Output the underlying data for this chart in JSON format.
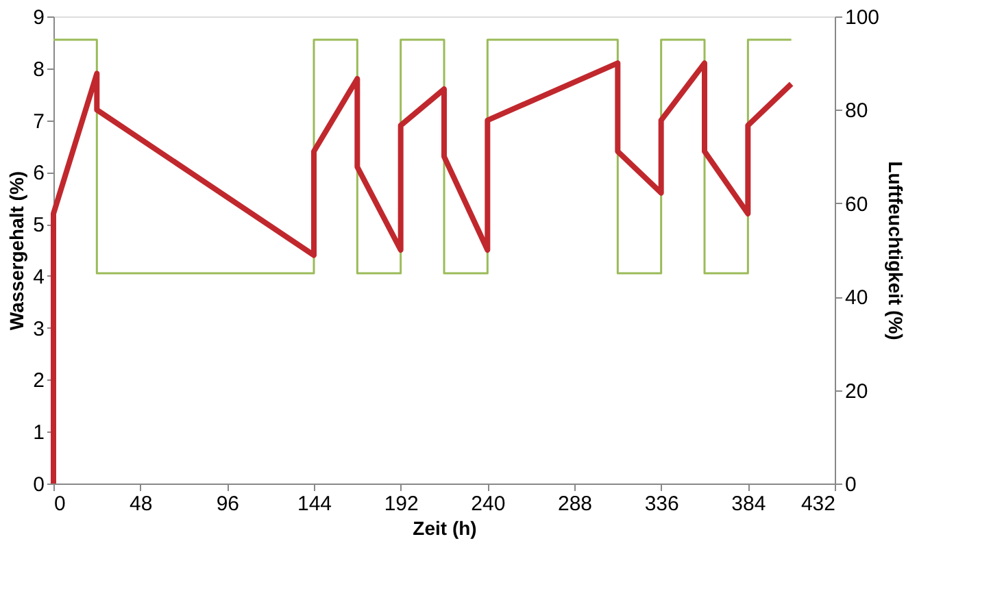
{
  "chart_data": {
    "type": "line",
    "xlabel": "Zeit (h)",
    "ylabel": "Wassergehalt (%)",
    "y2label": "Luftfeuchtigkeit (%)",
    "xlim": [
      0,
      432
    ],
    "xticks": [
      0,
      48,
      96,
      144,
      192,
      240,
      288,
      336,
      384,
      432
    ],
    "ylim": [
      0,
      9
    ],
    "yticks": [
      0,
      1,
      2,
      3,
      4,
      5,
      6,
      7,
      8,
      9
    ],
    "y2lim": [
      0,
      100
    ],
    "y2ticks": [
      0,
      20,
      40,
      60,
      80,
      100
    ],
    "grid": false,
    "marker": "none",
    "line_style": "solid",
    "series": [
      {
        "type": "line",
        "color": "#c0282d",
        "x": [
          0,
          0,
          24,
          24,
          144,
          144,
          168,
          168,
          192,
          192,
          216,
          216,
          240,
          240,
          312,
          312,
          336,
          336,
          360,
          360,
          384,
          384,
          408
        ],
        "values": [
          0,
          5.2,
          7.9,
          7.2,
          4.4,
          6.4,
          7.8,
          6.1,
          4.5,
          6.9,
          7.6,
          6.3,
          4.5,
          7.0,
          8.1,
          6.4,
          5.6,
          7.0,
          8.1,
          6.4,
          5.2,
          6.9,
          7.7
        ]
      },
      {
        "type": "step",
        "axis": "y2",
        "color": "#9bbb59",
        "x": [
          0,
          24,
          144,
          168,
          192,
          216,
          240,
          312,
          336,
          360,
          384,
          408
        ],
        "values": [
          95,
          45,
          95,
          45,
          95,
          45,
          95,
          45,
          95,
          45,
          95,
          95
        ]
      }
    ]
  }
}
